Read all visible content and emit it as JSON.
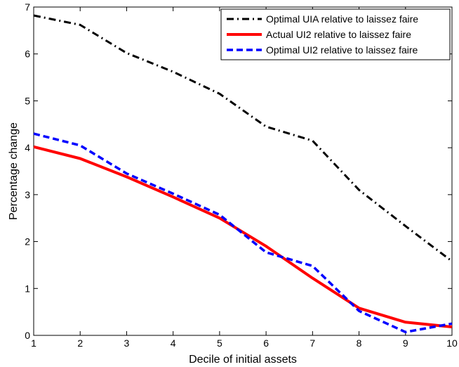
{
  "chart_data": {
    "type": "line",
    "title": "",
    "xlabel": "Decile of initial assets",
    "ylabel": "Percentage change",
    "xlim": [
      1,
      10
    ],
    "ylim": [
      0,
      7
    ],
    "x_ticks": [
      1,
      2,
      3,
      4,
      5,
      6,
      7,
      8,
      9,
      10
    ],
    "y_ticks": [
      0,
      1,
      2,
      3,
      4,
      5,
      6,
      7
    ],
    "grid": false,
    "legend_position": "top-right",
    "x": [
      1,
      2,
      3,
      4,
      5,
      6,
      7,
      8,
      9,
      10
    ],
    "series": [
      {
        "name": "Optimal UIA relative to laissez faire",
        "values": [
          6.82,
          6.62,
          6.02,
          5.62,
          5.15,
          4.45,
          4.15,
          3.1,
          2.33,
          1.58
        ],
        "color": "#000000",
        "line_style": "dash-dot"
      },
      {
        "name": "Actual UI2 relative to laissez faire",
        "values": [
          4.02,
          3.77,
          3.38,
          2.95,
          2.5,
          1.9,
          1.22,
          0.58,
          0.28,
          0.18
        ],
        "color": "#ff0000",
        "line_style": "solid"
      },
      {
        "name": "Optimal UI2 relative to laissez faire",
        "values": [
          4.3,
          4.05,
          3.45,
          3.02,
          2.57,
          1.77,
          1.48,
          0.52,
          0.07,
          0.25
        ],
        "color": "#0000ff",
        "line_style": "dashed"
      }
    ]
  }
}
